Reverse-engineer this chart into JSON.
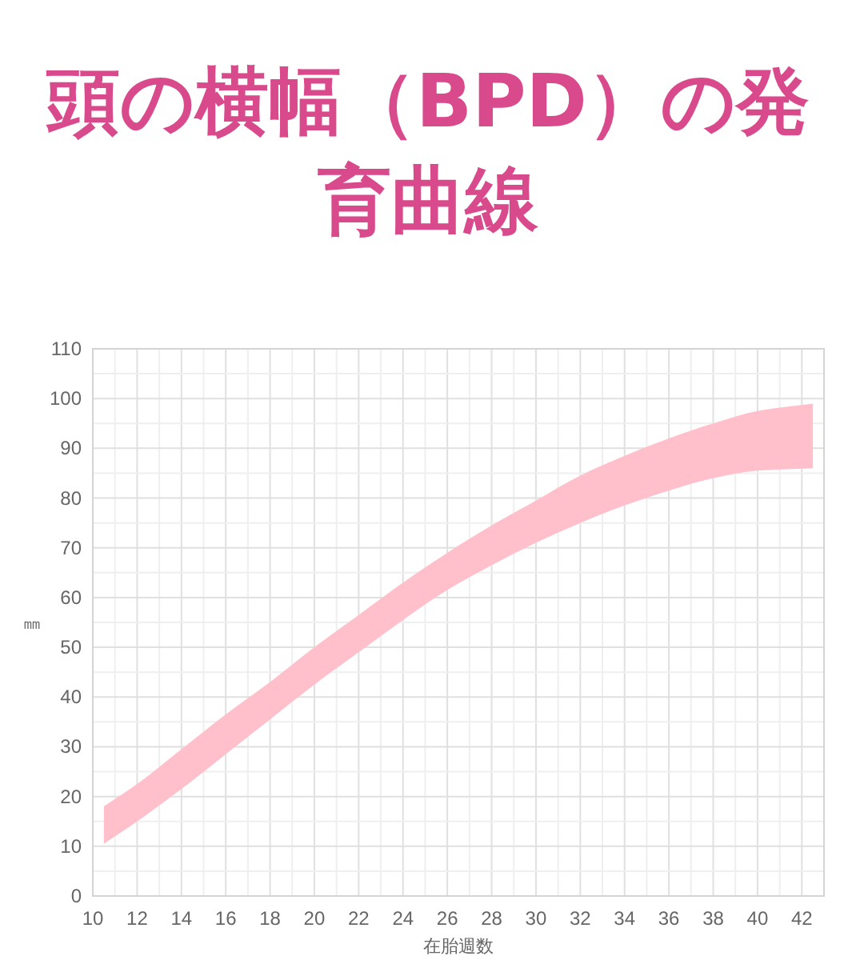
{
  "chart_data": {
    "type": "area",
    "title": "頭の横幅（BPD）の発育曲線",
    "xlabel": "在胎週数",
    "ylabel": "㎜",
    "x": [
      10.5,
      12,
      14,
      16,
      18,
      20,
      22,
      24,
      26,
      28,
      30,
      32,
      34,
      36,
      38,
      40,
      42.5
    ],
    "series": [
      {
        "color": "#ffc0cb",
        "values": [
          null,
          null,
          null,
          null,
          null,
          null,
          null,
          null,
          null,
          null,
          null,
          null,
          null,
          null,
          null,
          null,
          null
        ],
        "upper": [
          18,
          22.5,
          29.5,
          36.5,
          43,
          50,
          56.5,
          63,
          69,
          74.5,
          79.5,
          84.5,
          88.5,
          92,
          95,
          97.5,
          99
        ],
        "lower": [
          10.5,
          15,
          21.5,
          28.5,
          35.5,
          42.5,
          49,
          55.5,
          61.5,
          66.5,
          71,
          75,
          78.5,
          81.5,
          84,
          85.5,
          86
        ]
      }
    ],
    "xlim": [
      10,
      43
    ],
    "xticks": [
      10,
      {
        "value": 11,
        "label": null
      },
      12,
      {
        "value": 13,
        "label": null
      },
      14,
      {
        "value": 15,
        "label": null
      },
      16,
      {
        "value": 17,
        "label": null
      },
      18,
      {
        "value": 19,
        "label": null
      },
      20,
      {
        "value": 21,
        "label": null
      },
      22,
      {
        "value": 23,
        "label": null
      },
      24,
      {
        "value": 25,
        "label": null
      },
      26,
      {
        "value": 27,
        "label": null
      },
      28,
      {
        "value": 29,
        "label": null
      },
      30,
      {
        "value": 31,
        "label": null
      },
      32,
      {
        "value": 33,
        "label": null
      },
      34,
      {
        "value": 35,
        "label": null
      },
      36,
      {
        "value": 37,
        "label": null
      },
      38,
      {
        "value": 39,
        "label": null
      },
      40,
      {
        "value": 41,
        "label": null
      },
      42
    ],
    "ylim": [
      0,
      110
    ],
    "yticks": [
      0,
      {
        "value": 5,
        "label": null
      },
      10,
      {
        "value": 15,
        "label": null
      },
      20,
      {
        "value": 25,
        "label": null
      },
      30,
      {
        "value": 35,
        "label": null
      },
      40,
      {
        "value": 45,
        "label": null
      },
      50,
      {
        "value": 55,
        "label": null
      },
      60,
      {
        "value": 65,
        "label": null
      },
      70,
      {
        "value": 75,
        "label": null
      },
      80,
      {
        "value": 85,
        "label": null
      },
      90,
      {
        "value": 95,
        "label": null
      },
      100,
      {
        "value": 105,
        "label": null
      },
      110
    ],
    "grid": true
  }
}
